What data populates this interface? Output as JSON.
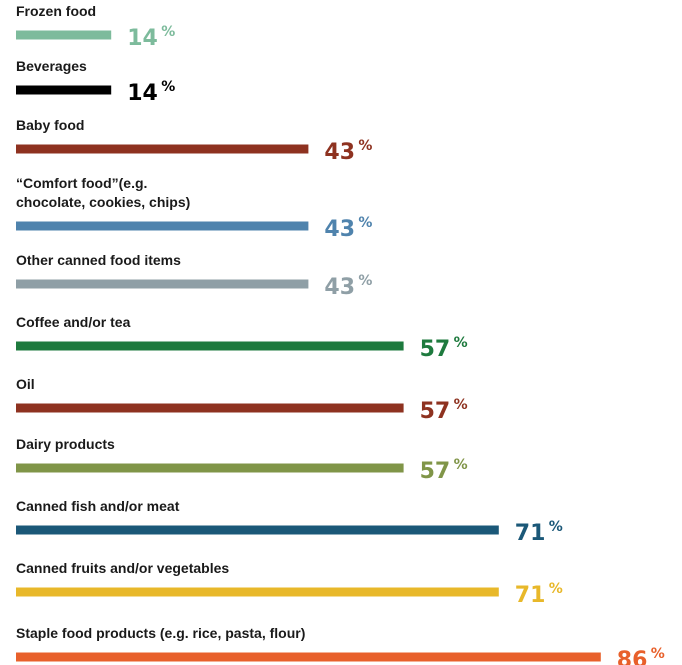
{
  "chart_data": {
    "type": "bar",
    "orientation": "horizontal",
    "unit": "%",
    "xlim": [
      0,
      100
    ],
    "grid": false,
    "categories": [
      "Frozen food",
      "Beverages",
      "Baby food",
      "“Comfort food”(e.g. chocolate, cookies, chips)",
      "Other canned food items",
      "Coffee and/or tea",
      "Oil",
      "Dairy products",
      "Canned fish and/or meat",
      "Canned fruits and/or vegetables",
      "Staple food products (e.g. rice, pasta, flour)"
    ],
    "category_lines": [
      [
        "Frozen food"
      ],
      [
        "Beverages"
      ],
      [
        "Baby food"
      ],
      [
        "“Comfort food”(e.g.",
        "chocolate, cookies, chips)"
      ],
      [
        "Other canned food items"
      ],
      [
        "Coffee and/or tea"
      ],
      [
        "Oil"
      ],
      [
        "Dairy products"
      ],
      [
        "Canned fish and/or meat"
      ],
      [
        "Canned fruits and/or vegetables"
      ],
      [
        "Staple food products (e.g. rice, pasta, flour)"
      ]
    ],
    "values": [
      14,
      14,
      43,
      43,
      43,
      57,
      57,
      57,
      71,
      71,
      86
    ],
    "data_labels": [
      "14",
      "14",
      "43",
      "43",
      "43",
      "57",
      "57",
      "57",
      "71",
      "71",
      "86"
    ],
    "colors": [
      "#7dbb9c",
      "#000000",
      "#8e3220",
      "#4f83ad",
      "#8f9fa6",
      "#1e7a3e",
      "#8e3220",
      "#809548",
      "#1b5878",
      "#e8b82a",
      "#e8602b"
    ]
  }
}
